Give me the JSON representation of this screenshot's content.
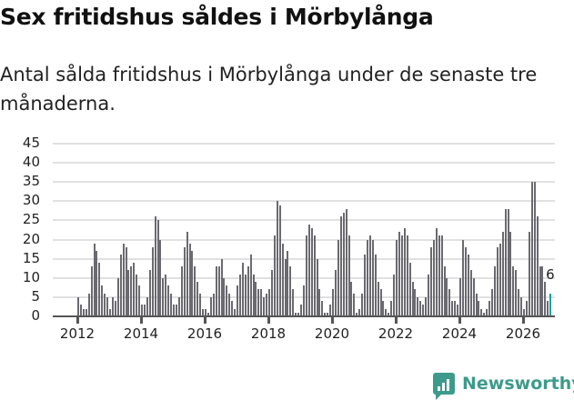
{
  "header": {
    "title": "Sex fritidshus såldes i Mörbylånga",
    "subtitle": "Antal sålda fritidshus i Mörbylånga under de senaste tre månaderna."
  },
  "branding": {
    "name": "Newsworthy",
    "color": "#3c9b8b"
  },
  "chart_data": {
    "type": "bar",
    "title": "Sex fritidshus såldes i Mörbylånga",
    "subtitle": "Antal sålda fritidshus i Mörbylånga under de senaste tre månaderna.",
    "xlabel": "",
    "ylabel": "",
    "ylim": [
      0,
      45
    ],
    "yticks": [
      0,
      5,
      10,
      15,
      20,
      25,
      30,
      35,
      40,
      45
    ],
    "xticks": [
      "2012",
      "2014",
      "2016",
      "2018",
      "2020",
      "2022",
      "2024",
      "2026"
    ],
    "grid": true,
    "colors": {
      "bar": "#6b6a70",
      "highlight": "#1aa19b"
    },
    "start": "2012-01",
    "frequency": "monthly",
    "annotation": {
      "label": "6",
      "target": "last"
    },
    "values": [
      5,
      3,
      2,
      2,
      6,
      13,
      19,
      17,
      14,
      8,
      6,
      5,
      2,
      5,
      4,
      10,
      16,
      19,
      18,
      12,
      13,
      14,
      11,
      8,
      3,
      3,
      5,
      12,
      18,
      26,
      25,
      20,
      10,
      11,
      8,
      6,
      3,
      3,
      5,
      13,
      18,
      22,
      19,
      17,
      13,
      9,
      6,
      2,
      2,
      1,
      5,
      6,
      13,
      13,
      15,
      10,
      8,
      6,
      4,
      2,
      8,
      11,
      14,
      11,
      13,
      16,
      11,
      9,
      7,
      7,
      5,
      6,
      7,
      12,
      21,
      30,
      29,
      19,
      15,
      17,
      13,
      7,
      1,
      1,
      3,
      8,
      21,
      24,
      23,
      21,
      15,
      7,
      4,
      1,
      1,
      3,
      7,
      12,
      20,
      26,
      27,
      28,
      21,
      9,
      6,
      1,
      2,
      6,
      16,
      20,
      21,
      20,
      16,
      9,
      7,
      4,
      2,
      1,
      4,
      11,
      20,
      22,
      21,
      23,
      21,
      14,
      9,
      7,
      5,
      4,
      3,
      5,
      11,
      18,
      20,
      23,
      21,
      21,
      13,
      10,
      7,
      4,
      4,
      3,
      10,
      20,
      18,
      16,
      12,
      10,
      6,
      4,
      2,
      1,
      2,
      4,
      7,
      13,
      18,
      19,
      22,
      28,
      28,
      22,
      13,
      12,
      7,
      5,
      2,
      4,
      22,
      35,
      35,
      26,
      13,
      13,
      9,
      4,
      6
    ]
  }
}
